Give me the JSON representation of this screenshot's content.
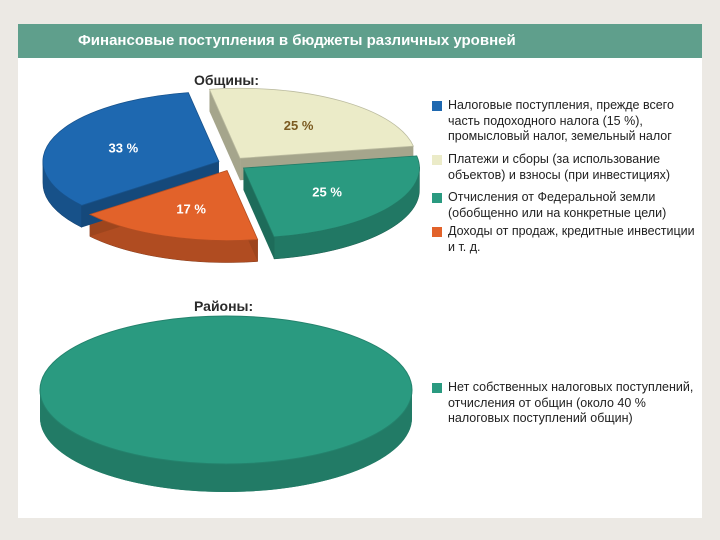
{
  "title": "Финансовые поступления в бюджеты различных уровней",
  "chart_data": [
    {
      "type": "pie",
      "title": "Общины:",
      "slices": [
        {
          "name": "Налоговые поступления, прежде всего часть подоходного налога (15 %), промысловый налог, земельный налог",
          "value": 33,
          "label": "33 %",
          "color": "#1e68b0"
        },
        {
          "name": "Платежи и сборы (за использование объектов) и взносы (при инвестициях)",
          "value": 25,
          "label": "25 %",
          "color": "#ebebc8"
        },
        {
          "name": "Отчисления от Федеральной земли (обобщенно или на конкретные цели)",
          "value": 25,
          "label": "25 %",
          "color": "#2a9a80"
        },
        {
          "name": "Доходы от продаж, кредитные инвестиции и т. д.",
          "value": 17,
          "label": "17 %",
          "color": "#e2622a"
        }
      ]
    },
    {
      "type": "pie",
      "title": "Районы:",
      "slices": [
        {
          "name": "Нет собственных налоговых поступлений, отчисления от общин (около 40 % налоговых поступлений общин)",
          "value": 100,
          "label": "",
          "color": "#2a9a80"
        }
      ]
    }
  ],
  "legend1": [
    {
      "text": "Налоговые поступления, прежде всего часть подоходного налога (15 %), промысловый налог, земельный налог",
      "color": "#1e68b0"
    },
    {
      "text": "Платежи и сборы (за использование объектов) и взносы (при инвестициях)",
      "color": "#ebebc8"
    },
    {
      "text": "Отчисления от Федеральной земли (обобщенно или на конкретные цели)",
      "color": "#2a9a80"
    },
    {
      "text": "Доходы от продаж, кредитные инвестиции и т. д.",
      "color": "#e2622a"
    }
  ],
  "legend2": [
    {
      "text": "Нет собственных налоговых поступлений, отчисления от общин (около 40 % налоговых поступлений общин)",
      "color": "#2a9a80"
    }
  ]
}
